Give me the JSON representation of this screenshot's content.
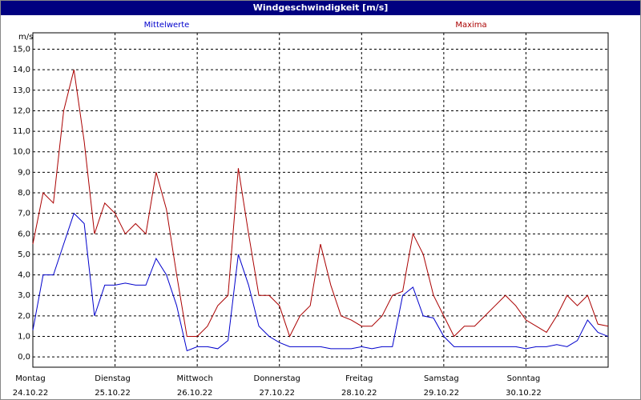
{
  "chart_data": {
    "type": "line",
    "title": "Windgeschwindigkeit [m/s]",
    "y_unit": "m/s",
    "x": [
      0,
      3,
      6,
      9,
      12,
      15,
      18,
      21,
      24,
      27,
      30,
      33,
      36,
      39,
      42,
      45,
      48,
      51,
      54,
      57,
      60,
      63,
      66,
      69,
      72,
      75,
      78,
      81,
      84,
      87,
      90,
      93,
      96,
      99,
      102,
      105,
      108,
      111,
      114,
      117,
      120,
      123,
      126,
      129,
      132,
      135,
      138,
      141,
      144,
      147,
      150,
      153,
      156,
      159,
      162,
      165,
      168
    ],
    "series": [
      {
        "name": "Mittelwerte",
        "color": "#0000cc",
        "values": [
          1.3,
          4.0,
          4.0,
          5.5,
          7.0,
          6.5,
          2.0,
          3.5,
          3.5,
          3.6,
          3.5,
          3.5,
          4.8,
          4.0,
          2.5,
          0.3,
          0.5,
          0.5,
          0.4,
          0.8,
          5.0,
          3.5,
          1.5,
          1.0,
          0.7,
          0.5,
          0.5,
          0.5,
          0.5,
          0.4,
          0.4,
          0.4,
          0.5,
          0.4,
          0.5,
          0.5,
          3.0,
          3.4,
          2.0,
          1.9,
          1.0,
          0.5,
          0.5,
          0.5,
          0.5,
          0.5,
          0.5,
          0.5,
          0.4,
          0.5,
          0.5,
          0.6,
          0.5,
          0.8,
          1.8,
          1.2,
          1.0
        ]
      },
      {
        "name": "Maxima",
        "color": "#aa0000",
        "values": [
          5.5,
          8.0,
          7.5,
          12.0,
          14.0,
          10.5,
          6.0,
          7.5,
          7.0,
          6.0,
          6.5,
          6.0,
          9.0,
          7.2,
          4.0,
          1.0,
          1.0,
          1.5,
          2.5,
          3.0,
          9.2,
          6.0,
          3.0,
          3.0,
          2.5,
          1.0,
          2.0,
          2.5,
          5.5,
          3.5,
          2.0,
          1.8,
          1.5,
          1.5,
          2.0,
          3.0,
          3.2,
          6.0,
          5.0,
          3.0,
          2.0,
          1.0,
          1.5,
          1.5,
          2.0,
          2.5,
          3.0,
          2.5,
          1.8,
          1.5,
          1.2,
          2.0,
          3.0,
          2.5,
          3.0,
          1.6,
          1.5
        ]
      }
    ],
    "xlim": [
      0,
      168
    ],
    "xticks": [
      {
        "value": 0,
        "label": "Montag",
        "date": "24.10.22"
      },
      {
        "value": 24,
        "label": "Dienstag",
        "date": "25.10.22"
      },
      {
        "value": 48,
        "label": "Mittwoch",
        "date": "26.10.22"
      },
      {
        "value": 72,
        "label": "Donnerstag",
        "date": "27.10.22"
      },
      {
        "value": 96,
        "label": "Freitag",
        "date": "28.10.22"
      },
      {
        "value": 120,
        "label": "Samstag",
        "date": "29.10.22"
      },
      {
        "value": 144,
        "label": "Sonntag",
        "date": "30.10.22"
      }
    ],
    "ylim": [
      -0.5,
      15.8
    ],
    "yticks": [
      {
        "value": 0,
        "label": "0,0"
      },
      {
        "value": 1,
        "label": "1,0"
      },
      {
        "value": 2,
        "label": "2,0"
      },
      {
        "value": 3,
        "label": "3,0"
      },
      {
        "value": 4,
        "label": "4,0"
      },
      {
        "value": 5,
        "label": "5,0"
      },
      {
        "value": 6,
        "label": "6,0"
      },
      {
        "value": 7,
        "label": "7,0"
      },
      {
        "value": 8,
        "label": "8,0"
      },
      {
        "value": 9,
        "label": "9,0"
      },
      {
        "value": 10,
        "label": "10,0"
      },
      {
        "value": 11,
        "label": "11,0"
      },
      {
        "value": 12,
        "label": "12,0"
      },
      {
        "value": 13,
        "label": "13,0"
      },
      {
        "value": 14,
        "label": "14,0"
      },
      {
        "value": 15,
        "label": "15,0"
      }
    ],
    "grid": true
  }
}
